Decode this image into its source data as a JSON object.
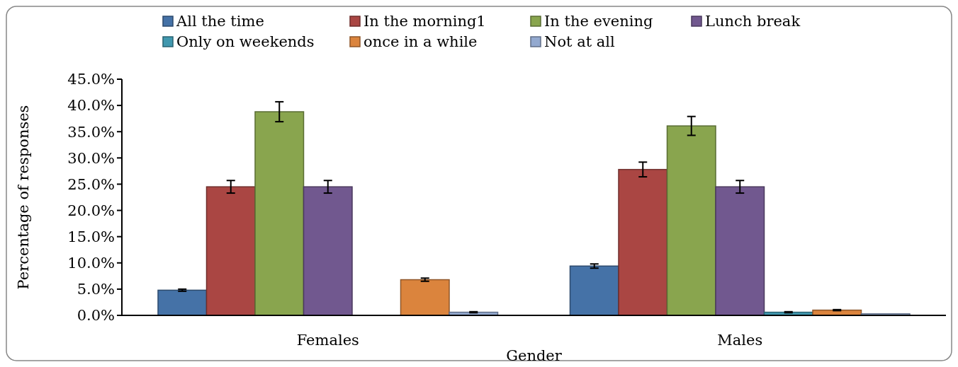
{
  "chart_data": {
    "type": "bar",
    "xlabel": "Gender",
    "ylabel": "Percentage of responses",
    "categories": [
      "Females",
      "Males"
    ],
    "series": [
      {
        "name": "All the time",
        "color": "#4572a7",
        "values": [
          4.8,
          9.4
        ],
        "errors": [
          0.2,
          0.4
        ]
      },
      {
        "name": "In the morning1",
        "color": "#aa4643",
        "values": [
          24.5,
          27.8
        ],
        "errors": [
          1.2,
          1.4
        ]
      },
      {
        "name": "In the evening",
        "color": "#89a54e",
        "values": [
          38.8,
          36.1
        ],
        "errors": [
          1.9,
          1.8
        ]
      },
      {
        "name": "Lunch break",
        "color": "#71588f",
        "values": [
          24.5,
          24.5
        ],
        "errors": [
          1.2,
          1.2
        ]
      },
      {
        "name": "Only on weekends",
        "color": "#4198af",
        "values": [
          0,
          0.6
        ],
        "errors": [
          null,
          0.1
        ]
      },
      {
        "name": "once in a while",
        "color": "#db843d",
        "values": [
          6.8,
          1.0
        ],
        "errors": [
          0.3,
          0.1
        ]
      },
      {
        "name": "Not at all",
        "color": "#93a9cf",
        "values": [
          0.6,
          0.3
        ],
        "errors": [
          0.1,
          null
        ]
      }
    ],
    "ylim": [
      0,
      45
    ],
    "yticks": [
      {
        "value": 0,
        "label": "0.0%"
      },
      {
        "value": 5,
        "label": "5.0%"
      },
      {
        "value": 10,
        "label": "10.0%"
      },
      {
        "value": 15,
        "label": "15.0%"
      },
      {
        "value": 20,
        "label": "20.0%"
      },
      {
        "value": 25,
        "label": "25.0%"
      },
      {
        "value": 30,
        "label": "30.0%"
      },
      {
        "value": 35,
        "label": "35.0%"
      },
      {
        "value": 40,
        "label": "40.0%"
      },
      {
        "value": 45,
        "label": "45.0%"
      }
    ],
    "grid": false,
    "legend": "top"
  }
}
